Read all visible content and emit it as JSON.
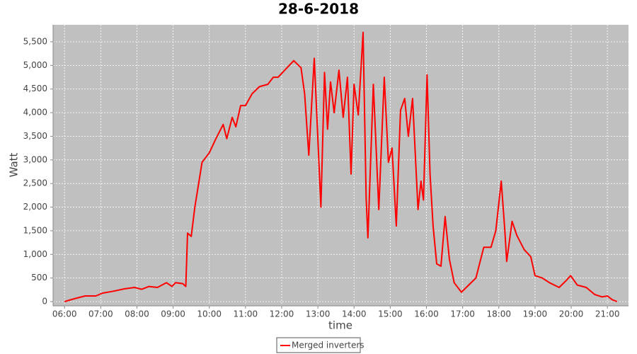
{
  "chart_data": {
    "type": "line",
    "title": "28-6-2018",
    "x_label": "time",
    "y_label": "Watt",
    "xlim": [
      "05:41",
      "21:35"
    ],
    "ylim": [
      -90,
      5860
    ],
    "xticks": [
      "06:00",
      "07:00",
      "08:00",
      "09:00",
      "10:00",
      "11:00",
      "12:00",
      "13:00",
      "14:00",
      "15:00",
      "16:00",
      "17:00",
      "18:00",
      "19:00",
      "20:00",
      "21:00"
    ],
    "yticks": [
      0,
      500,
      {
        "value": 1000,
        "label": "1,000"
      },
      {
        "value": 1500,
        "label": "1,500"
      },
      {
        "value": 2000,
        "label": "2,000"
      },
      {
        "value": 2500,
        "label": "2,500"
      },
      {
        "value": 3000,
        "label": "3,000"
      },
      {
        "value": 3500,
        "label": "3,500"
      },
      {
        "value": 4000,
        "label": "4,000"
      },
      {
        "value": 4500,
        "label": "4,500"
      },
      {
        "value": 5000,
        "label": "5,000"
      },
      {
        "value": 5500,
        "label": "5,500"
      }
    ],
    "grid": true,
    "legend": "bottom",
    "x": [
      "06:00",
      "06:16",
      "06:34",
      "06:52",
      "07:03",
      "07:21",
      "07:39",
      "07:56",
      "08:08",
      "08:20",
      "08:34",
      "08:49",
      "08:58",
      "09:04",
      "09:16",
      "09:21",
      "09:24",
      "09:30",
      "09:36",
      "09:48",
      "10:00",
      "10:11",
      "10:23",
      "10:29",
      "10:38",
      "10:44",
      "10:52",
      "11:00",
      "11:11",
      "11:23",
      "11:37",
      "11:46",
      "11:54",
      "12:20",
      "12:32",
      "12:38",
      "12:45",
      "12:54",
      "13:05",
      "13:11",
      "13:16",
      "13:21",
      "13:27",
      "13:35",
      "13:42",
      "13:49",
      "13:55",
      "14:00",
      "14:07",
      "14:15",
      "14:20",
      "14:23",
      "14:32",
      "14:41",
      "14:50",
      "14:57",
      "15:03",
      "15:10",
      "15:17",
      "15:24",
      "15:30",
      "15:37",
      "15:46",
      "15:51",
      "15:55",
      "16:01",
      "16:06",
      "16:11",
      "16:17",
      "16:24",
      "16:31",
      "16:38",
      "16:46",
      "16:58",
      "17:10",
      "17:22",
      "17:35",
      "17:47",
      "17:55",
      "18:04",
      "18:10",
      "18:13",
      "18:22",
      "18:30",
      "18:42",
      "18:53",
      "19:00",
      "19:12",
      "19:24",
      "19:40",
      "19:52",
      "19:59",
      "20:10",
      "20:25",
      "20:39",
      "20:51",
      "21:00",
      "21:08",
      "21:16"
    ],
    "series": [
      {
        "name": "Merged inverters",
        "color": "#ff0000",
        "values": [
          0,
          60,
          120,
          120,
          180,
          220,
          270,
          300,
          260,
          320,
          300,
          400,
          320,
          400,
          380,
          320,
          1450,
          1380,
          2000,
          2950,
          3150,
          3450,
          3750,
          3450,
          3900,
          3700,
          4150,
          4150,
          4400,
          4550,
          4600,
          4750,
          4750,
          5100,
          4950,
          4400,
          3100,
          5150,
          2000,
          4850,
          3650,
          4650,
          4000,
          4900,
          3900,
          4750,
          2700,
          4600,
          3950,
          5700,
          2200,
          1350,
          4600,
          1950,
          4750,
          2950,
          3250,
          1600,
          4050,
          4300,
          3500,
          4300,
          1950,
          2550,
          2150,
          4800,
          2700,
          1600,
          800,
          750,
          1800,
          900,
          400,
          200,
          350,
          500,
          1150,
          1150,
          1500,
          2550,
          1500,
          850,
          1700,
          1400,
          1100,
          950,
          550,
          500,
          400,
          300,
          450,
          550,
          350,
          300,
          150,
          100,
          120,
          40,
          0
        ]
      }
    ]
  }
}
